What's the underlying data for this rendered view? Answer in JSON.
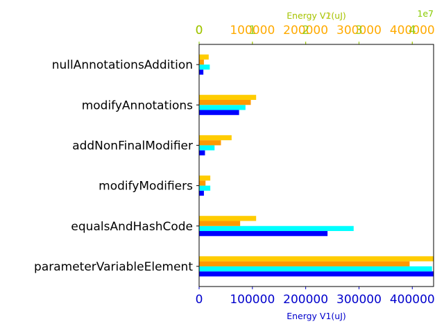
{
  "chart_data": {
    "type": "bar",
    "orientation": "horizontal",
    "categories": [
      "nullAnnotationsAddition",
      "modifyAnnotations",
      "addNonFinalModifier",
      "modifyModifiers",
      "equalsAndHashCode",
      "parameterVariableElement"
    ],
    "xlim": [
      0,
      440000
    ],
    "xticks": [
      0,
      100000,
      200000,
      300000,
      400000
    ],
    "xlabel": "Energy V1(uJ)",
    "axis_color": "#0000cc",
    "top_axes": [
      {
        "xlabel": "Energy V2(uJ)",
        "color": "#ffaa00",
        "ticks": [
          0,
          100000,
          200000,
          300000,
          400000
        ]
      },
      {
        "xlabel": "Energy V1(uJ)",
        "color": "#88cc00",
        "ticks": [
          0,
          1,
          2,
          3,
          4
        ],
        "exponent": "1e7"
      }
    ],
    "series": [
      {
        "color": "#0000ff",
        "values": [
          8000,
          75000,
          11000,
          9000,
          241000,
          440000
        ]
      },
      {
        "color": "#00ffff",
        "values": [
          20000,
          87000,
          29000,
          21000,
          290000,
          437000
        ]
      },
      {
        "color": "#ff9900",
        "values": [
          9000,
          97000,
          41000,
          12000,
          77000,
          395000
        ]
      },
      {
        "color": "#ffcc00",
        "values": [
          18000,
          107000,
          61000,
          21000,
          107000,
          440000
        ]
      }
    ]
  }
}
